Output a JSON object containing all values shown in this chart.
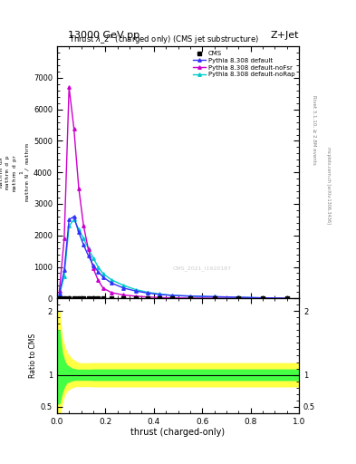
{
  "title_top": "13000 GeV pp",
  "title_right": "Z+Jet",
  "plot_title": "Thrust $\\lambda\\_2^1$ (charged only) (CMS jet substructure)",
  "xlabel": "thrust (charged-only)",
  "ylabel_main_lines": [
    "mathrm d$^2$N",
    "mathrm d$\\lambda$",
    "mathrm d p$_T$",
    "1",
    "mathrm N / mathrm"
  ],
  "ylabel_ratio": "Ratio to CMS",
  "rivet_label": "Rivet 3.1.10, ≥ 2.8M events",
  "mcplots_label": "mcplots.cern.ch [arXiv:1306.3436]",
  "cms_label": "CMS_2021_I1920187",
  "legend_entries": [
    "CMS",
    "Pythia 8.308 default",
    "Pythia 8.308 default-noFsr",
    "Pythia 8.308 default-noRap"
  ],
  "colors": {
    "cms": "#000000",
    "default": "#3333ff",
    "noFsr": "#cc00cc",
    "noRap": "#00cccc"
  },
  "thrust_bins": [
    0.0,
    0.02,
    0.04,
    0.06,
    0.08,
    0.1,
    0.12,
    0.14,
    0.16,
    0.18,
    0.2,
    0.25,
    0.3,
    0.35,
    0.4,
    0.45,
    0.5,
    0.6,
    0.7,
    0.8,
    0.9,
    1.0
  ],
  "cms_values": [
    5,
    10,
    15,
    15,
    15,
    12,
    10,
    8,
    7,
    6,
    5,
    4,
    3,
    3,
    2,
    2,
    2,
    2,
    1,
    1,
    1
  ],
  "default_values": [
    150,
    900,
    2500,
    2600,
    2100,
    1700,
    1350,
    1050,
    850,
    680,
    490,
    330,
    235,
    170,
    125,
    95,
    75,
    55,
    38,
    18,
    4
  ],
  "noFsr_values": [
    250,
    1900,
    6700,
    5400,
    3500,
    2300,
    1550,
    950,
    580,
    330,
    185,
    110,
    72,
    45,
    28,
    18,
    9,
    4,
    1.5,
    0.8,
    0.3
  ],
  "noRap_values": [
    120,
    700,
    2300,
    2500,
    2200,
    1900,
    1580,
    1280,
    1000,
    790,
    590,
    415,
    280,
    195,
    138,
    98,
    72,
    52,
    33,
    16,
    3.5
  ],
  "ylim_main": [
    0,
    8000
  ],
  "ylim_ratio": [
    0.4,
    2.2
  ],
  "yticks_main": [
    0,
    1000,
    2000,
    3000,
    4000,
    5000,
    6000,
    7000
  ],
  "ytick_labels_main": [
    "0",
    "1000",
    "2000",
    "3000",
    "4000",
    "5000",
    "6000",
    "7000"
  ],
  "yticks_ratio": [
    0.5,
    1.0,
    2.0
  ],
  "green_band_lo": 0.92,
  "green_band_hi": 1.08,
  "yellow_band_lo": 0.82,
  "yellow_band_hi": 1.18,
  "small_x": [
    0.0,
    0.01,
    0.02,
    0.03,
    0.04,
    0.06,
    0.08,
    0.1,
    0.15,
    0.2,
    0.3,
    1.0
  ],
  "yellow_lo": [
    0.35,
    0.35,
    0.55,
    0.68,
    0.75,
    0.8,
    0.83,
    0.85,
    0.82,
    0.82,
    0.82,
    0.82
  ],
  "yellow_hi": [
    2.0,
    2.0,
    1.6,
    1.45,
    1.35,
    1.25,
    1.2,
    1.17,
    1.18,
    1.18,
    1.18,
    1.18
  ],
  "green_lo": [
    0.55,
    0.55,
    0.72,
    0.82,
    0.88,
    0.91,
    0.93,
    0.94,
    0.92,
    0.92,
    0.92,
    0.92
  ],
  "green_hi": [
    1.7,
    1.7,
    1.35,
    1.22,
    1.15,
    1.1,
    1.08,
    1.06,
    1.08,
    1.08,
    1.08,
    1.08
  ]
}
